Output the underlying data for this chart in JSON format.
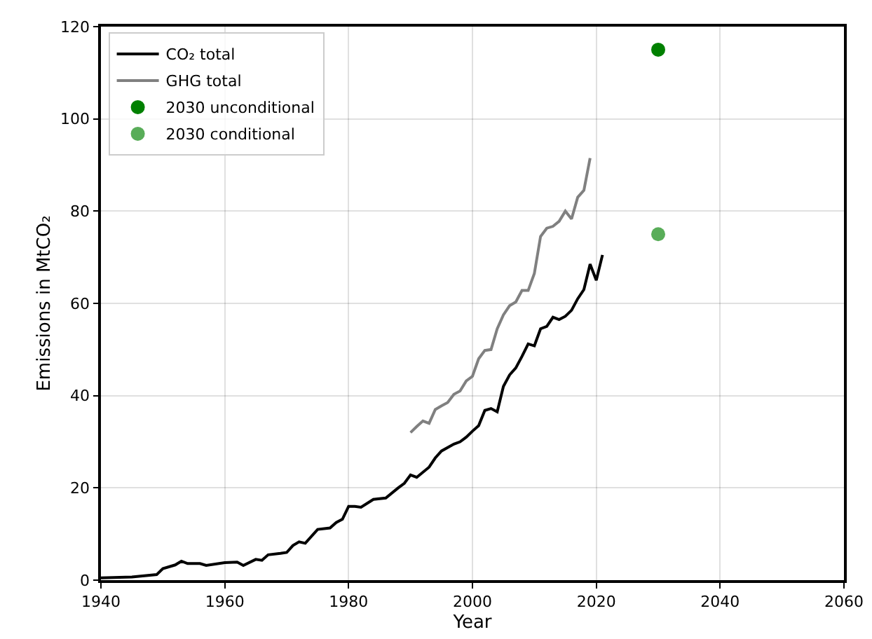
{
  "chart_data": {
    "type": "line",
    "xlabel": "Year",
    "ylabel": "Emissions in MtCO₂",
    "xlim": [
      1940,
      2060
    ],
    "ylim": [
      0,
      120
    ],
    "xticks": [
      1940,
      1960,
      1980,
      2000,
      2020,
      2040,
      2060
    ],
    "yticks": [
      0,
      20,
      40,
      60,
      80,
      100,
      120
    ],
    "grid": true,
    "legend": "top left",
    "series": [
      {
        "name": "CO₂ total",
        "color": "#000000",
        "x": [
          1940,
          1945,
          1949,
          1950,
          1952,
          1953,
          1954,
          1956,
          1957,
          1960,
          1962,
          1963,
          1965,
          1966,
          1967,
          1969,
          1970,
          1971,
          1972,
          1973,
          1975,
          1977,
          1978,
          1979,
          1980,
          1981,
          1982,
          1984,
          1986,
          1988,
          1989,
          1990,
          1991,
          1993,
          1994,
          1995,
          1997,
          1998,
          1999,
          2000,
          2001,
          2002,
          2003,
          2004,
          2005,
          2006,
          2007,
          2008,
          2009,
          2010,
          2011,
          2012,
          2013,
          2014,
          2015,
          2016,
          2017,
          2018,
          2019,
          2020,
          2021
        ],
        "values": [
          0.5,
          0.7,
          1.2,
          2.5,
          3.3,
          4.1,
          3.6,
          3.6,
          3.2,
          3.8,
          3.9,
          3.2,
          4.5,
          4.3,
          5.5,
          5.8,
          6,
          7.5,
          8.3,
          8,
          11,
          11.3,
          12.5,
          13.2,
          16,
          16,
          15.8,
          17.5,
          17.8,
          20,
          21,
          22.8,
          22.3,
          24.5,
          26.5,
          28,
          29.5,
          30,
          31,
          32.3,
          33.5,
          36.8,
          37.2,
          36.5,
          42,
          44.5,
          46,
          48.5,
          51.2,
          50.8,
          54.5,
          55,
          57,
          56.5,
          57.2,
          58.5,
          61,
          63,
          68.5,
          65,
          70.5
        ]
      },
      {
        "name": "GHG total",
        "color": "#808080",
        "x": [
          1990,
          1991,
          1992,
          1993,
          1994,
          1995,
          1996,
          1997,
          1998,
          1999,
          2000,
          2001,
          2002,
          2003,
          2004,
          2005,
          2006,
          2007,
          2008,
          2009,
          2010,
          2011,
          2012,
          2013,
          2014,
          2015,
          2016,
          2017,
          2018,
          2019
        ],
        "values": [
          32,
          33.3,
          34.5,
          34,
          37,
          37.8,
          38.5,
          40.3,
          41,
          43.2,
          44.2,
          48,
          49.8,
          50,
          54.5,
          57.5,
          59.5,
          60.3,
          62.8,
          62.8,
          66.5,
          74.5,
          76.3,
          76.7,
          77.8,
          80,
          78.3,
          83,
          84.5,
          91.5
        ]
      },
      {
        "name": "2030 unconditional",
        "type": "scatter",
        "marker": "circle",
        "color": "#008000",
        "x": [
          2030
        ],
        "values": [
          115
        ]
      },
      {
        "name": "2030 conditional",
        "type": "scatter",
        "marker": "circle",
        "color": "#59ad59",
        "x": [
          2030
        ],
        "values": [
          75
        ]
      }
    ]
  }
}
